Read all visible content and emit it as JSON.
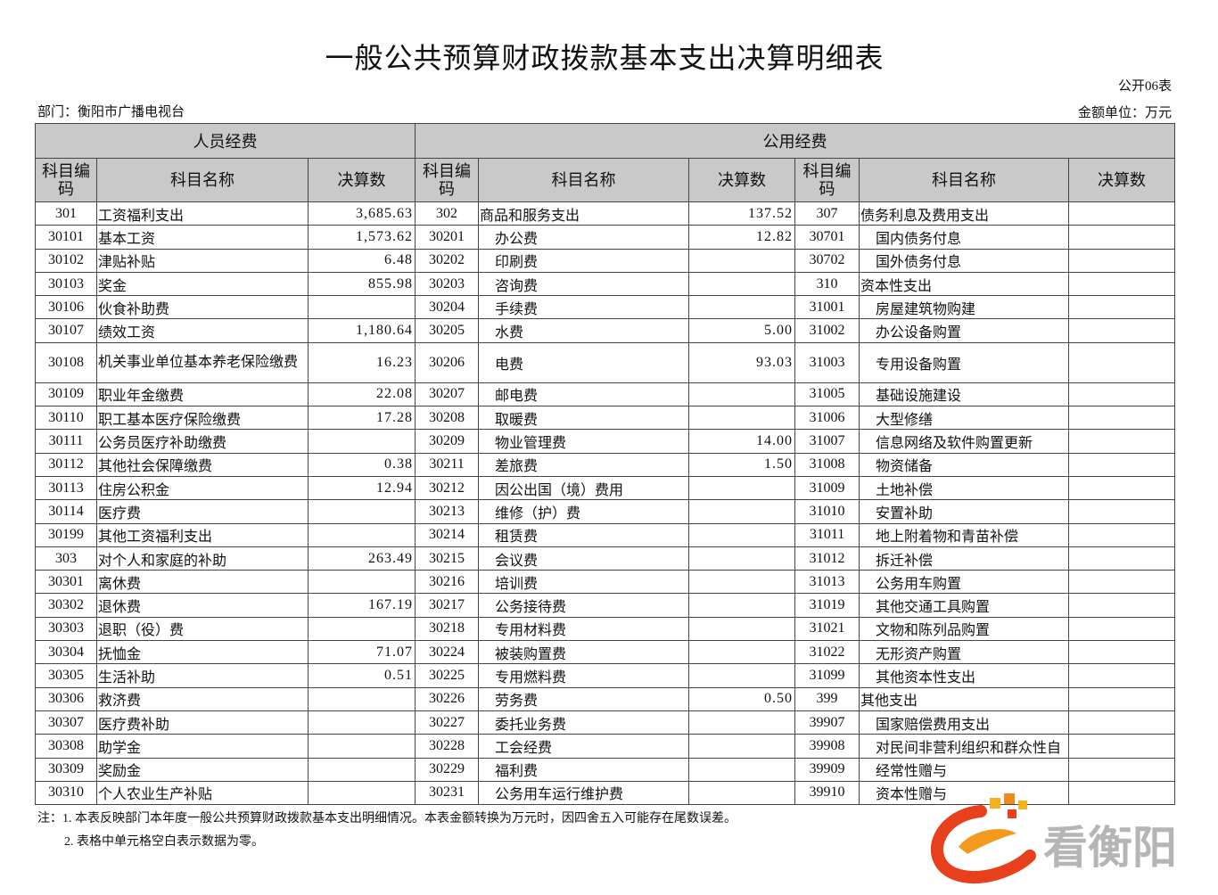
{
  "header": {
    "title": "一般公共预算财政拨款基本支出决算明细表",
    "form_no": "公开06表",
    "department": "部门：衡阳市广播电视台",
    "unit": "金额单位：万元"
  },
  "table": {
    "group_headers": [
      "人员经费",
      "公用经费"
    ],
    "column_headers": [
      "科目编码",
      "科目名称",
      "决算数",
      "科目编码",
      "科目名称",
      "决算数",
      "科目编码",
      "科目名称",
      "决算数"
    ],
    "rows": [
      [
        "301",
        "工资福利支出",
        "3,685.63",
        "302",
        "商品和服务支出",
        "137.52",
        "307",
        "债务利息及费用支出",
        null
      ],
      [
        "30101",
        "基本工资",
        "1,573.62",
        "30201",
        "办公费",
        "12.82",
        "30701",
        "国内债务付息",
        null
      ],
      [
        "30102",
        "津贴补贴",
        "6.48",
        "30202",
        "印刷费",
        null,
        "30702",
        "国外债务付息",
        null
      ],
      [
        "30103",
        "奖金",
        "855.98",
        "30203",
        "咨询费",
        null,
        "310",
        "资本性支出",
        null
      ],
      [
        "30106",
        "伙食补助费",
        null,
        "30204",
        "手续费",
        null,
        "31001",
        "房屋建筑物购建",
        null
      ],
      [
        "30107",
        "绩效工资",
        "1,180.64",
        "30205",
        "水费",
        "5.00",
        "31002",
        "办公设备购置",
        null
      ],
      [
        "30108",
        "机关事业单位基本养老保险缴费",
        "16.23",
        "30206",
        "电费",
        "93.03",
        "31003",
        "专用设备购置",
        null
      ],
      [
        "30109",
        "职业年金缴费",
        "22.08",
        "30207",
        "邮电费",
        null,
        "31005",
        "基础设施建设",
        null
      ],
      [
        "30110",
        "职工基本医疗保险缴费",
        "17.28",
        "30208",
        "取暖费",
        null,
        "31006",
        "大型修缮",
        null
      ],
      [
        "30111",
        "公务员医疗补助缴费",
        null,
        "30209",
        "物业管理费",
        "14.00",
        "31007",
        "信息网络及软件购置更新",
        null
      ],
      [
        "30112",
        "其他社会保障缴费",
        "0.38",
        "30211",
        "差旅费",
        "1.50",
        "31008",
        "物资储备",
        null
      ],
      [
        "30113",
        "住房公积金",
        "12.94",
        "30212",
        "因公出国（境）费用",
        null,
        "31009",
        "土地补偿",
        null
      ],
      [
        "30114",
        "医疗费",
        null,
        "30213",
        "维修（护）费",
        null,
        "31010",
        "安置补助",
        null
      ],
      [
        "30199",
        "其他工资福利支出",
        null,
        "30214",
        "租赁费",
        null,
        "31011",
        "地上附着物和青苗补偿",
        null
      ],
      [
        "303",
        "对个人和家庭的补助",
        "263.49",
        "30215",
        "会议费",
        null,
        "31012",
        "拆迁补偿",
        null
      ],
      [
        "30301",
        "离休费",
        null,
        "30216",
        "培训费",
        null,
        "31013",
        "公务用车购置",
        null
      ],
      [
        "30302",
        "退休费",
        "167.19",
        "30217",
        "公务接待费",
        null,
        "31019",
        "其他交通工具购置",
        null
      ],
      [
        "30303",
        "退职（役）费",
        null,
        "30218",
        "专用材料费",
        null,
        "31021",
        "文物和陈列品购置",
        null
      ],
      [
        "30304",
        "抚恤金",
        "71.07",
        "30224",
        "被装购置费",
        null,
        "31022",
        "无形资产购置",
        null
      ],
      [
        "30305",
        "生活补助",
        "0.51",
        "30225",
        "专用燃料费",
        null,
        "31099",
        "其他资本性支出",
        null
      ],
      [
        "30306",
        "救济费",
        null,
        "30226",
        "劳务费",
        "0.50",
        "399",
        "其他支出",
        null
      ],
      [
        "30307",
        "医疗费补助",
        null,
        "30227",
        "委托业务费",
        null,
        "39907",
        "国家赔偿费用支出",
        null
      ],
      [
        "30308",
        "助学金",
        null,
        "30228",
        "工会经费",
        null,
        "39908",
        "对民间非营利组织和群众性自",
        null
      ],
      [
        "30309",
        "奖励金",
        null,
        "30229",
        "福利费",
        null,
        "39909",
        "经常性赠与",
        null
      ],
      [
        "30310",
        "个人农业生产补贴",
        null,
        "30231",
        "公务用车运行维护费",
        null,
        "39910",
        "资本性赠与",
        null
      ]
    ]
  },
  "notes": [
    "注：1. 本表反映部门本年度一般公共预算财政拨款基本支出明细情况。本表金额转换为万元时，因四舍五入可能存在尾数误差。",
    "2. 表格中单元格空白表示数据为零。"
  ],
  "logo": {
    "text": "看衡阳"
  }
}
